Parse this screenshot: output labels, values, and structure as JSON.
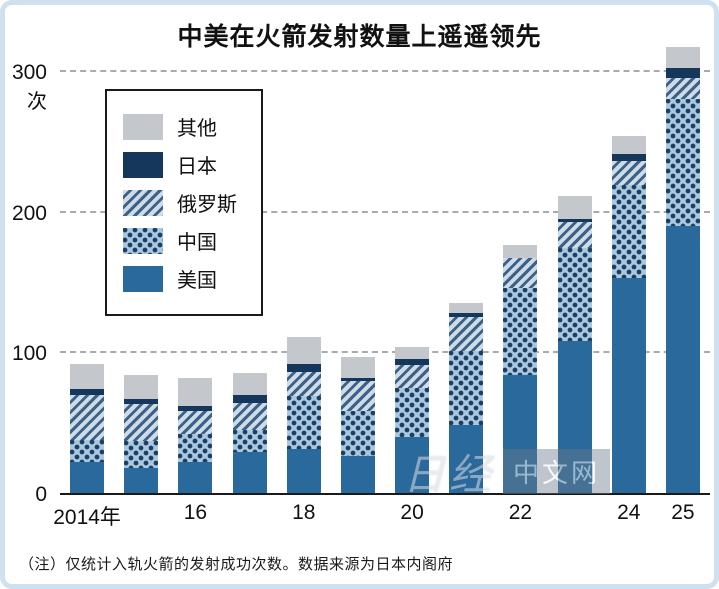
{
  "title": "中美在火箭发射数量上遥遥领先",
  "note": "（注）仅统计入轨火箭的发射成功次数。数据来源为日本内阁府",
  "watermark": {
    "script": "日经",
    "box": "中文网"
  },
  "y_axis": {
    "unit": "次",
    "ticks": [
      0,
      100,
      200,
      300
    ]
  },
  "x_axis": {
    "labels": [
      "2014年",
      "",
      "16",
      "",
      "18",
      "",
      "20",
      "",
      "22",
      "",
      "24",
      "25"
    ]
  },
  "legend": [
    {
      "label": "其他",
      "style": "other"
    },
    {
      "label": "日本",
      "style": "jp"
    },
    {
      "label": "俄罗斯",
      "style": "ru"
    },
    {
      "label": "中国",
      "style": "cn"
    },
    {
      "label": "美国",
      "style": "us"
    }
  ],
  "colors": {
    "us": "#2a699c",
    "china_bg": "#aac9e1",
    "china_dot": "#1c3e63",
    "russia_bg": "#cfdce8",
    "russia_stripe": "#3c6288",
    "japan": "#16375c",
    "other": "#c4c8cc",
    "frame_border": "#cfe0ee",
    "gridline": "#a6abb1"
  },
  "chart_data": {
    "type": "bar",
    "stacked": true,
    "title": "中美在火箭发射数量上遥遥领先",
    "unit_label": "次",
    "categories": [
      "2014",
      "2015",
      "2016",
      "2017",
      "2018",
      "2019",
      "2020",
      "2021",
      "2022",
      "2023",
      "2024",
      "2025"
    ],
    "x_tick_labels": [
      "2014年",
      "",
      "16",
      "",
      "18",
      "",
      "20",
      "",
      "22",
      "",
      "24",
      "25"
    ],
    "ylim": [
      0,
      300
    ],
    "yticks": [
      0,
      100,
      200,
      300
    ],
    "grid": "dashed-horizontal",
    "legend_position": "upper-left-box",
    "series": [
      {
        "name": "美国",
        "style": "us",
        "values": [
          22,
          18,
          22,
          29,
          31,
          26,
          40,
          48,
          84,
          108,
          153,
          190
        ]
      },
      {
        "name": "中国",
        "style": "cn",
        "values": [
          16,
          19,
          20,
          16,
          38,
          32,
          35,
          53,
          62,
          66,
          66,
          90
        ]
      },
      {
        "name": "俄罗斯",
        "style": "ru",
        "values": [
          32,
          26,
          16,
          19,
          17,
          22,
          16,
          24,
          21,
          19,
          17,
          15
        ]
      },
      {
        "name": "日本",
        "style": "jp",
        "values": [
          4,
          4,
          4,
          6,
          6,
          2,
          4,
          3,
          0,
          2,
          5,
          7
        ]
      },
      {
        "name": "其他",
        "style": "other",
        "values": [
          18,
          17,
          20,
          15,
          19,
          15,
          9,
          7,
          9,
          16,
          13,
          15
        ]
      }
    ],
    "totals": [
      92,
      84,
      82,
      85,
      111,
      97,
      104,
      135,
      176,
      211,
      254,
      317
    ]
  }
}
